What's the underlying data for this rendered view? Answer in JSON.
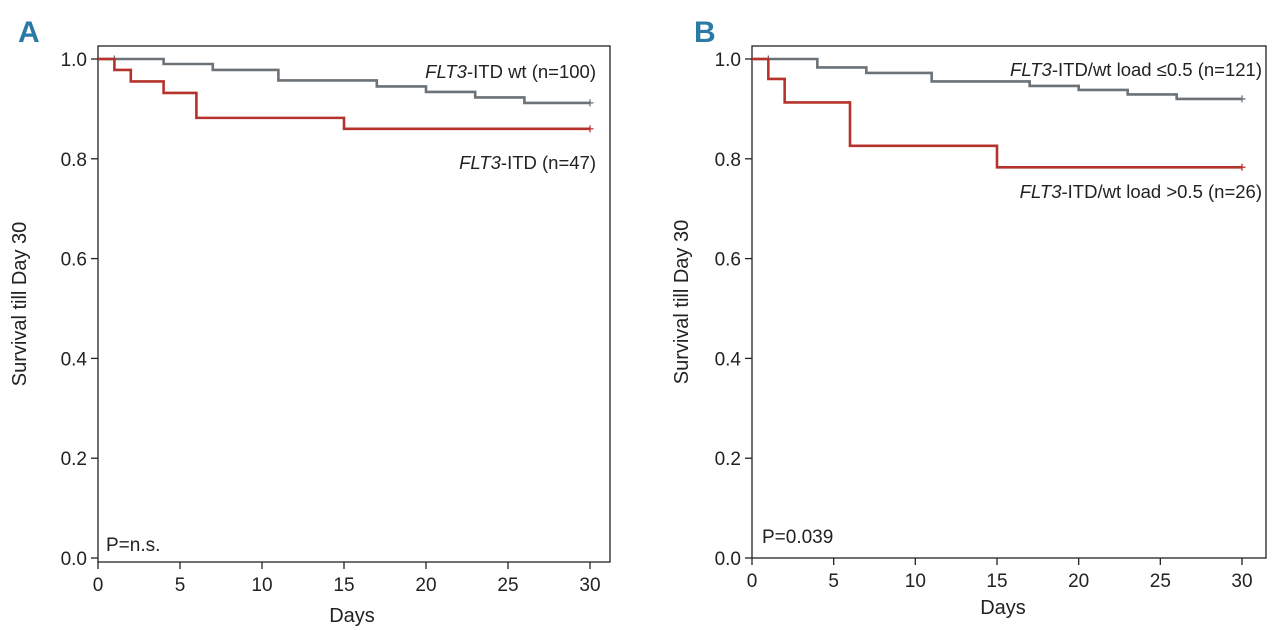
{
  "chart_data": [
    {
      "panel": "A",
      "type": "line",
      "xlabel": "Days",
      "ylabel": "Survival till Day 30",
      "xlim": [
        0,
        30
      ],
      "ylim": [
        0,
        1.0
      ],
      "xticks": [
        0,
        5,
        10,
        15,
        20,
        25,
        30
      ],
      "xtick_labels": [
        "0",
        "5",
        "10",
        "15",
        "20",
        "25",
        "30"
      ],
      "yticks": [
        0,
        0.2,
        0.4,
        0.6,
        0.8,
        1.0
      ],
      "ytick_labels": [
        "0.0",
        "0.2",
        "0.4",
        "0.6",
        "0.8",
        "1.0"
      ],
      "p_value": "P=n.s.",
      "series": [
        {
          "name_italic": "FLT3",
          "name_rest": "-ITD wt (n=100)",
          "color": "#6b7278",
          "steps": [
            [
              0,
              1.0
            ],
            [
              4,
              0.99
            ],
            [
              7,
              0.978
            ],
            [
              11,
              0.957
            ],
            [
              17,
              0.945
            ],
            [
              20,
              0.934
            ],
            [
              23,
              0.923
            ],
            [
              26,
              0.912
            ],
            [
              30,
              0.912
            ]
          ],
          "censor": [
            [
              1,
              1.0
            ],
            [
              30,
              0.912
            ]
          ]
        },
        {
          "name_italic": "FLT3",
          "name_rest": "-ITD (n=47)",
          "color": "#b5332b",
          "steps": [
            [
              0,
              1.0
            ],
            [
              1,
              0.978
            ],
            [
              2,
              0.955
            ],
            [
              4,
              0.932
            ],
            [
              6,
              0.882
            ],
            [
              15,
              0.86
            ],
            [
              30,
              0.86
            ]
          ],
          "censor": [
            [
              30,
              0.86
            ]
          ]
        }
      ]
    },
    {
      "panel": "B",
      "type": "line",
      "xlabel": "Days",
      "ylabel": "Survival till Day 30",
      "xlim": [
        0,
        30
      ],
      "ylim": [
        0,
        1.0
      ],
      "xticks": [
        0,
        5,
        10,
        15,
        20,
        25,
        30
      ],
      "xtick_labels": [
        "0",
        "5",
        "10",
        "15",
        "20",
        "25",
        "30"
      ],
      "yticks": [
        0,
        0.2,
        0.4,
        0.6,
        0.8,
        1.0
      ],
      "ytick_labels": [
        "0.0",
        "0.2",
        "0.4",
        "0.6",
        "0.8",
        "1.0"
      ],
      "p_value": "P=0.039",
      "series": [
        {
          "name_italic": "FLT3",
          "name_rest": "-ITD/wt load ≤0.5 (n=121)",
          "color": "#6b7278",
          "steps": [
            [
              0,
              1.0
            ],
            [
              4,
              0.983
            ],
            [
              7,
              0.972
            ],
            [
              11,
              0.955
            ],
            [
              17,
              0.946
            ],
            [
              20,
              0.938
            ],
            [
              23,
              0.929
            ],
            [
              26,
              0.92
            ],
            [
              30,
              0.92
            ]
          ],
          "censor": [
            [
              1,
              1.0
            ],
            [
              30,
              0.92
            ]
          ]
        },
        {
          "name_italic": "FLT3",
          "name_rest": "-ITD/wt load >0.5 (n=26)",
          "color": "#b5332b",
          "steps": [
            [
              0,
              1.0
            ],
            [
              1,
              0.96
            ],
            [
              2,
              0.913
            ],
            [
              6,
              0.826
            ],
            [
              15,
              0.783
            ],
            [
              30,
              0.783
            ]
          ],
          "censor": [
            [
              30,
              0.783
            ]
          ]
        }
      ]
    }
  ]
}
